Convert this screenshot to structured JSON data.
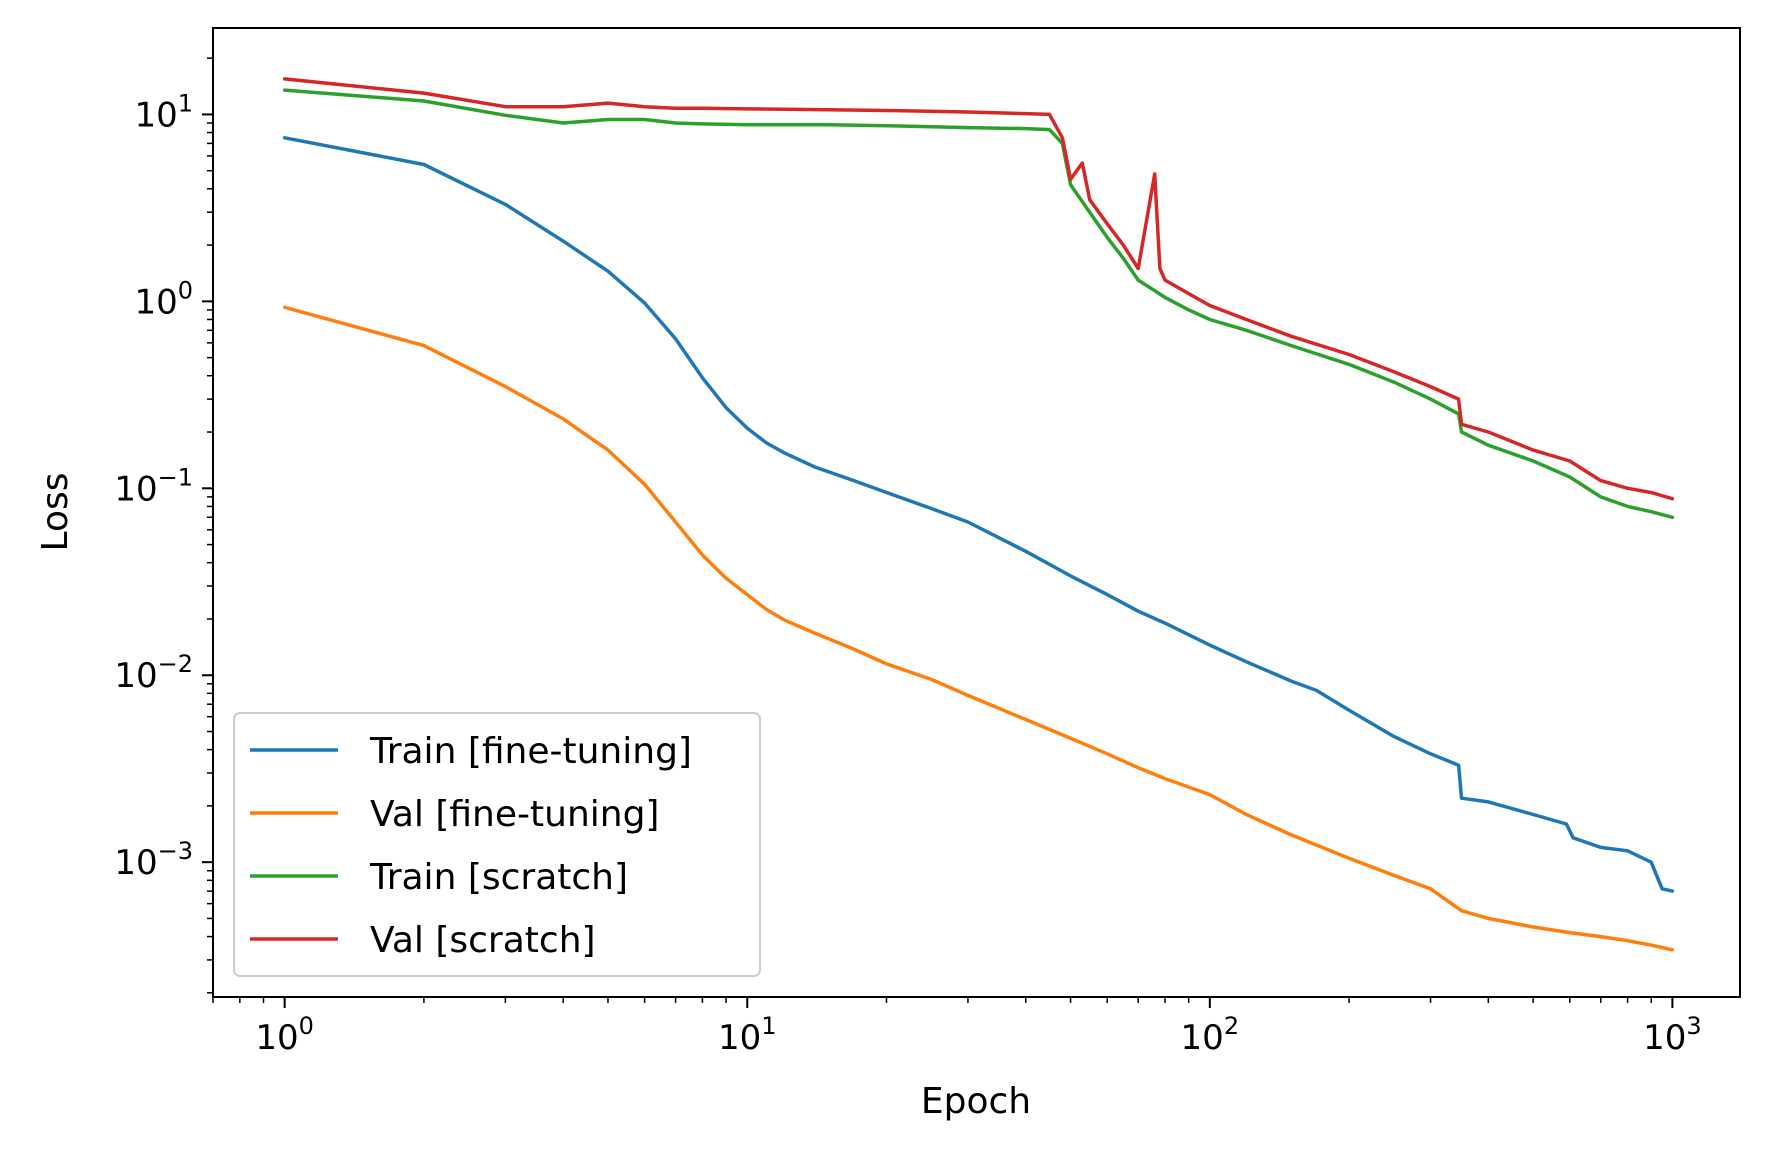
{
  "chart_data": {
    "type": "line",
    "title": "",
    "xlabel": "Epoch",
    "ylabel": "Loss",
    "xscale": "log",
    "yscale": "log",
    "xlim": [
      0.7,
      1400
    ],
    "ylim": [
      0.00019,
      29
    ],
    "x_ticks": [
      {
        "value": 1,
        "base": "10",
        "exp": "0"
      },
      {
        "value": 10,
        "base": "10",
        "exp": "1"
      },
      {
        "value": 100,
        "base": "10",
        "exp": "2"
      },
      {
        "value": 1000,
        "base": "10",
        "exp": "3"
      }
    ],
    "y_ticks": [
      {
        "value": 0.001,
        "base": "10",
        "exp": "−3"
      },
      {
        "value": 0.01,
        "base": "10",
        "exp": "−2"
      },
      {
        "value": 0.1,
        "base": "10",
        "exp": "−1"
      },
      {
        "value": 1,
        "base": "10",
        "exp": "0"
      },
      {
        "value": 10,
        "base": "10",
        "exp": "1"
      }
    ],
    "grid": false,
    "legend_position": "lower-left",
    "series": [
      {
        "name": "Train [fine-tuning]",
        "color": "#1f77b4",
        "points": [
          [
            1,
            7.5
          ],
          [
            2,
            5.4
          ],
          [
            3,
            3.3
          ],
          [
            4,
            2.1
          ],
          [
            5,
            1.45
          ],
          [
            6,
            0.98
          ],
          [
            7,
            0.63
          ],
          [
            8,
            0.39
          ],
          [
            9,
            0.27
          ],
          [
            10,
            0.21
          ],
          [
            11,
            0.175
          ],
          [
            12,
            0.155
          ],
          [
            14,
            0.13
          ],
          [
            17,
            0.11
          ],
          [
            20,
            0.095
          ],
          [
            25,
            0.078
          ],
          [
            30,
            0.066
          ],
          [
            40,
            0.046
          ],
          [
            50,
            0.034
          ],
          [
            60,
            0.027
          ],
          [
            70,
            0.022
          ],
          [
            80,
            0.019
          ],
          [
            100,
            0.0145
          ],
          [
            120,
            0.0118
          ],
          [
            150,
            0.0093
          ],
          [
            170,
            0.0083
          ],
          [
            200,
            0.0065
          ],
          [
            250,
            0.0047
          ],
          [
            300,
            0.0038
          ],
          [
            345,
            0.0033
          ],
          [
            350,
            0.0022
          ],
          [
            400,
            0.0021
          ],
          [
            500,
            0.0018
          ],
          [
            590,
            0.0016
          ],
          [
            610,
            0.00135
          ],
          [
            700,
            0.0012
          ],
          [
            800,
            0.00115
          ],
          [
            900,
            0.001
          ],
          [
            950,
            0.00072
          ],
          [
            1000,
            0.0007
          ]
        ]
      },
      {
        "name": "Val [fine-tuning]",
        "color": "#ff7f0e",
        "points": [
          [
            1,
            0.93
          ],
          [
            2,
            0.58
          ],
          [
            3,
            0.35
          ],
          [
            4,
            0.235
          ],
          [
            5,
            0.16
          ],
          [
            6,
            0.105
          ],
          [
            7,
            0.066
          ],
          [
            8,
            0.044
          ],
          [
            9,
            0.033
          ],
          [
            10,
            0.027
          ],
          [
            11,
            0.0225
          ],
          [
            12,
            0.0198
          ],
          [
            14,
            0.0168
          ],
          [
            17,
            0.0138
          ],
          [
            20,
            0.0115
          ],
          [
            25,
            0.0095
          ],
          [
            30,
            0.0078
          ],
          [
            40,
            0.0058
          ],
          [
            50,
            0.0046
          ],
          [
            60,
            0.0038
          ],
          [
            70,
            0.0032
          ],
          [
            80,
            0.0028
          ],
          [
            100,
            0.0023
          ],
          [
            120,
            0.0018
          ],
          [
            150,
            0.0014
          ],
          [
            200,
            0.00105
          ],
          [
            250,
            0.00085
          ],
          [
            300,
            0.00072
          ],
          [
            350,
            0.00055
          ],
          [
            400,
            0.0005
          ],
          [
            500,
            0.00045
          ],
          [
            600,
            0.00042
          ],
          [
            700,
            0.0004
          ],
          [
            800,
            0.00038
          ],
          [
            900,
            0.00036
          ],
          [
            1000,
            0.00034
          ]
        ]
      },
      {
        "name": "Train [scratch]",
        "color": "#2ca02c",
        "points": [
          [
            1,
            13.5
          ],
          [
            2,
            11.8
          ],
          [
            3,
            9.9
          ],
          [
            4,
            9.0
          ],
          [
            5,
            9.4
          ],
          [
            6,
            9.4
          ],
          [
            7,
            9.0
          ],
          [
            8,
            8.9
          ],
          [
            10,
            8.8
          ],
          [
            15,
            8.8
          ],
          [
            20,
            8.7
          ],
          [
            30,
            8.5
          ],
          [
            40,
            8.4
          ],
          [
            45,
            8.3
          ],
          [
            48,
            7.0
          ],
          [
            50,
            4.2
          ],
          [
            55,
            3.0
          ],
          [
            60,
            2.2
          ],
          [
            65,
            1.7
          ],
          [
            70,
            1.3
          ],
          [
            80,
            1.05
          ],
          [
            90,
            0.9
          ],
          [
            100,
            0.8
          ],
          [
            120,
            0.7
          ],
          [
            150,
            0.58
          ],
          [
            200,
            0.46
          ],
          [
            250,
            0.37
          ],
          [
            300,
            0.3
          ],
          [
            345,
            0.25
          ],
          [
            350,
            0.2
          ],
          [
            400,
            0.17
          ],
          [
            500,
            0.14
          ],
          [
            600,
            0.115
          ],
          [
            700,
            0.09
          ],
          [
            800,
            0.08
          ],
          [
            900,
            0.075
          ],
          [
            1000,
            0.07
          ]
        ]
      },
      {
        "name": "Val [scratch]",
        "color": "#d62728",
        "points": [
          [
            1,
            15.5
          ],
          [
            2,
            13.0
          ],
          [
            3,
            11.0
          ],
          [
            4,
            11.0
          ],
          [
            5,
            11.5
          ],
          [
            6,
            11.0
          ],
          [
            7,
            10.8
          ],
          [
            8,
            10.8
          ],
          [
            10,
            10.7
          ],
          [
            15,
            10.6
          ],
          [
            20,
            10.5
          ],
          [
            30,
            10.3
          ],
          [
            40,
            10.1
          ],
          [
            45,
            10.0
          ],
          [
            48,
            7.5
          ],
          [
            50,
            4.5
          ],
          [
            53,
            5.5
          ],
          [
            55,
            3.5
          ],
          [
            60,
            2.6
          ],
          [
            65,
            2.0
          ],
          [
            70,
            1.5
          ],
          [
            76,
            4.8
          ],
          [
            78,
            1.5
          ],
          [
            80,
            1.3
          ],
          [
            90,
            1.1
          ],
          [
            100,
            0.95
          ],
          [
            120,
            0.8
          ],
          [
            150,
            0.65
          ],
          [
            200,
            0.52
          ],
          [
            250,
            0.42
          ],
          [
            300,
            0.35
          ],
          [
            345,
            0.3
          ],
          [
            350,
            0.22
          ],
          [
            400,
            0.2
          ],
          [
            500,
            0.16
          ],
          [
            600,
            0.14
          ],
          [
            700,
            0.11
          ],
          [
            800,
            0.1
          ],
          [
            900,
            0.095
          ],
          [
            1000,
            0.088
          ]
        ]
      }
    ]
  }
}
